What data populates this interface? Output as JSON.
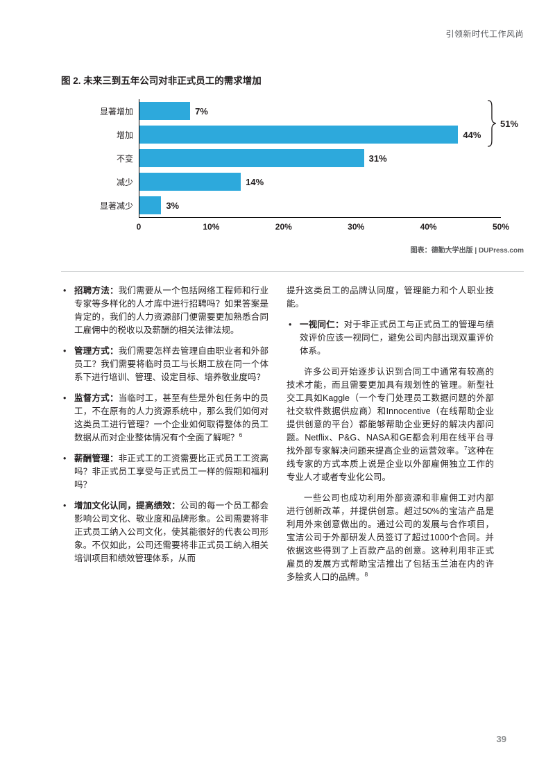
{
  "page": {
    "header": "引领新时代工作风尚",
    "page_number": "39"
  },
  "chart_data": {
    "type": "bar",
    "orientation": "horizontal",
    "title": "图 2. 未来三到五年公司对非正式员工的需求增加",
    "categories": [
      "显著增加",
      "增加",
      "不变",
      "减少",
      "显著减少"
    ],
    "values": [
      7,
      44,
      31,
      14,
      3
    ],
    "value_labels": [
      "7%",
      "44%",
      "31%",
      "14%",
      "3%"
    ],
    "xlim": [
      0,
      50
    ],
    "x_ticks": [
      "0",
      "10%",
      "20%",
      "30%",
      "40%",
      "50%"
    ],
    "bar_color": "#2da9dc",
    "grid": false,
    "bracket": {
      "label": "51%",
      "spans": [
        "显著增加",
        "增加"
      ],
      "sum_of": [
        7,
        44
      ]
    },
    "credit": "图表：德勤大学出版 | DUPress.com"
  },
  "content": {
    "left": [
      {
        "kind": "bullet",
        "lead": "招聘方法：",
        "segments": [
          {
            "t": "我们需要从一个包括网络工程师和行业专家等多样化的人才库中进行招聘吗？如果答案是肯定的，我们的人力资源部门便需要更加熟悉合同工雇佣中的税收以及薪酬的相关法律法规。"
          }
        ]
      },
      {
        "kind": "bullet",
        "lead": "管理方式：",
        "segments": [
          {
            "t": "我们需要怎样去管理自由职业者和外部员工？我们需要将临时员工与长期工放在同一个体系下进行培训、管理、设定目标、培养敬业度吗？"
          }
        ]
      },
      {
        "kind": "bullet",
        "lead": "监督方式：",
        "segments": [
          {
            "t": "当临时工，甚至有些是外包任务中的员工，不在原有的人力资源系统中，那么我们如何对这类员工进行管理？一个企业如何取得整体的员工数据从而对企业整体情况有个全面了解呢？"
          },
          {
            "t": "6",
            "sup": true
          }
        ]
      },
      {
        "kind": "bullet",
        "lead": "薪酬管理：",
        "segments": [
          {
            "t": "非正式工的工资需要比正式员工工资高吗？非正式员工享受与正式员工一样的假期和福利吗？"
          }
        ]
      },
      {
        "kind": "bullet",
        "lead": "增加文化认同，提高绩效：",
        "segments": [
          {
            "t": "公司的每一个员工都会影响公司文化、敬业度和品牌形象。公司需要将非正式员工纳入公司文化，使其能很好的代表公司形象。不仅如此，公司还需要将非正式员工纳入相关培训项目和绩效管理体系，从而"
          }
        ]
      }
    ],
    "right": [
      {
        "kind": "cont",
        "segments": [
          {
            "t": "提升这类员工的品牌认同度，管理能力和个人职业技能。"
          }
        ]
      },
      {
        "kind": "bullet",
        "lead": "一视同仁：",
        "segments": [
          {
            "t": "对于非正式员工与正式员工的管理与绩效评价应该一视同仁，避免公司内部出现双重评价体系。"
          }
        ]
      },
      {
        "kind": "para",
        "segments": [
          {
            "t": "许多公司开始逐步认识到合同工中通常有较高的技术才能，而且需要更加具有规划性的管理。新型社交工具如Kaggle（一个专门处理员工数据问题的外部社交软件数据供应商）和Innocentive（在线帮助企业提供创意的平台）都能够帮助企业更好的解决内部问题。Netflix、P&G、NASA和GE都会利用在线平台寻找外部专家解决问题来提高企业的运营效率。"
          },
          {
            "t": "7",
            "sup": true
          },
          {
            "t": "这种在线专家的方式本质上说是企业以外部雇佣独立工作的专业人才或者专业化公司。"
          }
        ]
      },
      {
        "kind": "para",
        "segments": [
          {
            "t": "一些公司也成功利用外部资源和非雇佣工对内部进行创新改革，并提供创意。超过50%的宝洁产品是利用外来创意做出的。通过公司的发展与合作项目，宝洁公司于外部研发人员签订了超过1000个合同。并依据这些得到了上百款产品的创意。这种利用非正式雇员的发展方式帮助宝洁推出了包括玉兰油在内的许多脍炙人口的品牌。"
          },
          {
            "t": "8",
            "sup": true
          }
        ]
      }
    ]
  }
}
